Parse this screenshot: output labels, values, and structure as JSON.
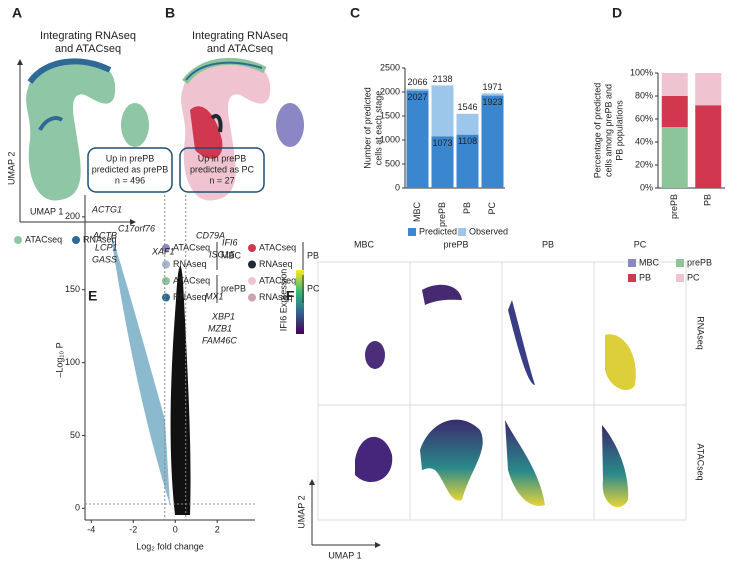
{
  "panels": {
    "A": {
      "letter": "A",
      "title": [
        "Integrating RNAseq",
        "and ATACseq"
      ],
      "xlabel": "UMAP 1",
      "ylabel": "UMAP 2",
      "legend": [
        {
          "label": "ATACseq",
          "color": "#8fc7a6"
        },
        {
          "label": "RNAseq",
          "color": "#2e6a96"
        }
      ]
    },
    "B": {
      "letter": "B",
      "title": [
        "Integrating RNAseq",
        "and ATACseq"
      ],
      "legend": [
        {
          "group": "MBC",
          "items": [
            {
              "label": "ATACseq",
              "color": "#8b86c4"
            },
            {
              "label": "RNAseq",
              "color": "#a7b7cf"
            }
          ]
        },
        {
          "group": "prePB",
          "items": [
            {
              "label": "ATACseq",
              "color": "#8cc59a"
            },
            {
              "label": "RNAseq",
              "color": "#2e6a96"
            }
          ]
        },
        {
          "group": "PB",
          "items": [
            {
              "label": "ATACseq",
              "color": "#d1384f"
            },
            {
              "label": "RNAseq",
              "color": "#1f2a33"
            }
          ]
        },
        {
          "group": "PC",
          "items": [
            {
              "label": "ATACseq",
              "color": "#efc4d0"
            },
            {
              "label": "RNAseq",
              "color": "#c9a3ae"
            }
          ]
        }
      ]
    },
    "C": {
      "letter": "C"
    },
    "D": {
      "letter": "D"
    },
    "E": {
      "letter": "E",
      "boxes": [
        [
          "Up in prePB",
          "predicted as prePB",
          "n = 496"
        ],
        [
          "Up in prePB",
          "predicted as PC",
          "n = 27"
        ]
      ],
      "genes": [
        "ACTG1",
        "ACTB",
        "LCP1",
        "GASS",
        "C17orf76",
        "XAF1",
        "CD79A",
        "IFI6",
        "ISG15",
        "MX1",
        "XBP1",
        "MZB1",
        "FAM46C"
      ]
    },
    "F": {
      "letter": "F",
      "columns": [
        "MBC",
        "prePB",
        "PB",
        "PC"
      ],
      "rows": [
        "RNAseq",
        "ATACseq"
      ],
      "colorbar": "IFI6 Expression",
      "xlabel": "UMAP 1",
      "ylabel": "UMAP 2"
    }
  },
  "chart_data": [
    {
      "type": "bar",
      "categories": [
        "MBC",
        "prePB",
        "PB",
        "PC"
      ],
      "ylabel": [
        "Number of predicted",
        "cells at each stage"
      ],
      "series": [
        {
          "name": "Observed",
          "color": "#9cc6ea",
          "values": [
            2066,
            2138,
            1546,
            1971
          ]
        },
        {
          "name": "Predicted",
          "color": "#3a87cf",
          "values": [
            2027,
            1073,
            1108,
            1923
          ]
        }
      ],
      "ylim": [
        0,
        2500
      ],
      "yticks": [
        0,
        500,
        1000,
        1500,
        2000,
        2500
      ]
    },
    {
      "type": "stacked_bar",
      "categories": [
        "prePB",
        "PB"
      ],
      "ylabel": [
        "Percentage of predicted",
        "cells among prePB and",
        "PB populations"
      ],
      "series": [
        {
          "name": "MBC",
          "color": "#8b86c4",
          "values": [
            0,
            0
          ]
        },
        {
          "name": "prePB",
          "color": "#8cc59a",
          "values": [
            53,
            0
          ]
        },
        {
          "name": "PB",
          "color": "#d1384f",
          "values": [
            27,
            72
          ]
        },
        {
          "name": "PC",
          "color": "#efc4d0",
          "values": [
            20,
            28
          ]
        }
      ],
      "ylim": [
        0,
        100
      ],
      "yticks": [
        {
          "value": 0,
          "label": "0%"
        },
        {
          "value": 20,
          "label": "20%"
        },
        {
          "value": 40,
          "label": "40%"
        },
        {
          "value": 60,
          "label": "60%"
        },
        {
          "value": 80,
          "label": "80%"
        },
        {
          "value": 100,
          "label": "100%"
        }
      ]
    },
    {
      "type": "volcano",
      "xlabel": "Log₂ fold change",
      "ylabel": "–Log₁₀ P",
      "xlim": [
        -4.3,
        3.8
      ],
      "ylim": [
        -8,
        215
      ],
      "xticks": [
        -4,
        -2,
        0,
        2
      ],
      "yticks": [
        0,
        50,
        100,
        150,
        200
      ],
      "vlines": [
        -0.5,
        0.5
      ],
      "hline": 3
    }
  ]
}
